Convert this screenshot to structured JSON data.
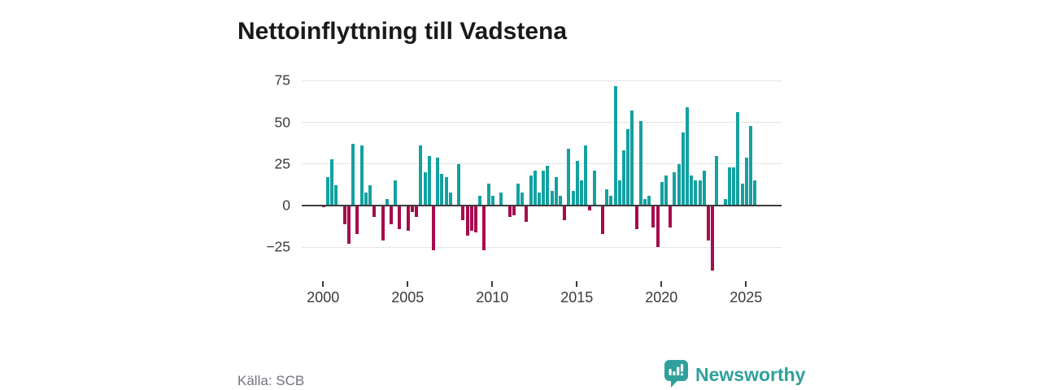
{
  "title": "Nettoinflyttning till Vadstena",
  "source": "Källa: SCB",
  "logo": {
    "text": "Newsworthy",
    "color": "#2fa09b"
  },
  "colors": {
    "positive_bar": "#14a1a0",
    "negative_bar": "#a60c4d",
    "gridline": "#e4e4e4",
    "zero_line": "#3d3d3d",
    "axis_text": "#3a3a40",
    "source_text": "#73737d",
    "title_text": "#191919"
  },
  "chart_data": {
    "type": "bar",
    "title": "Nettoinflyttning till Vadstena",
    "frequency": "quarterly",
    "x_start": "2000 Q1",
    "x_end": "2025 Q3",
    "grid": true,
    "legend": false,
    "ylim": [
      -45,
      80
    ],
    "yticks": [
      75,
      50,
      25,
      0,
      -25
    ],
    "ytick_labels": [
      "75",
      "50",
      "25",
      "0",
      "−25"
    ],
    "xticks": [
      2000,
      2005,
      2010,
      2015,
      2020,
      2025
    ],
    "xtick_labels": [
      "2000",
      "2005",
      "2010",
      "2015",
      "2020",
      "2025"
    ],
    "categories": [
      "2000Q1",
      "2000Q2",
      "2000Q3",
      "2000Q4",
      "2001Q1",
      "2001Q2",
      "2001Q3",
      "2001Q4",
      "2002Q1",
      "2002Q2",
      "2002Q3",
      "2002Q4",
      "2003Q1",
      "2003Q2",
      "2003Q3",
      "2003Q4",
      "2004Q1",
      "2004Q2",
      "2004Q3",
      "2004Q4",
      "2005Q1",
      "2005Q2",
      "2005Q3",
      "2005Q4",
      "2006Q1",
      "2006Q2",
      "2006Q3",
      "2006Q4",
      "2007Q1",
      "2007Q2",
      "2007Q3",
      "2007Q4",
      "2008Q1",
      "2008Q2",
      "2008Q3",
      "2008Q4",
      "2009Q1",
      "2009Q2",
      "2009Q3",
      "2009Q4",
      "2010Q1",
      "2010Q2",
      "2010Q3",
      "2010Q4",
      "2011Q1",
      "2011Q2",
      "2011Q3",
      "2011Q4",
      "2012Q1",
      "2012Q2",
      "2012Q3",
      "2012Q4",
      "2013Q1",
      "2013Q2",
      "2013Q3",
      "2013Q4",
      "2014Q1",
      "2014Q2",
      "2014Q3",
      "2014Q4",
      "2015Q1",
      "2015Q2",
      "2015Q3",
      "2015Q4",
      "2016Q1",
      "2016Q2",
      "2016Q3",
      "2016Q4",
      "2017Q1",
      "2017Q2",
      "2017Q3",
      "2017Q4",
      "2018Q1",
      "2018Q2",
      "2018Q3",
      "2018Q4",
      "2019Q1",
      "2019Q2",
      "2019Q3",
      "2019Q4",
      "2020Q1",
      "2020Q2",
      "2020Q3",
      "2020Q4",
      "2021Q1",
      "2021Q2",
      "2021Q3",
      "2021Q4",
      "2022Q1",
      "2022Q2",
      "2022Q3",
      "2022Q4",
      "2023Q1",
      "2023Q2",
      "2023Q3",
      "2023Q4",
      "2024Q1",
      "2024Q2",
      "2024Q3",
      "2024Q4",
      "2025Q1",
      "2025Q2",
      "2025Q3"
    ],
    "values": [
      -1,
      17,
      28,
      12,
      0,
      -11,
      -23,
      37,
      -17,
      36,
      8,
      12,
      -7,
      0,
      -21,
      4,
      -11,
      15,
      -14,
      0,
      -15,
      -4,
      -7,
      36,
      20,
      30,
      -27,
      29,
      19,
      17,
      8,
      0,
      25,
      -9,
      -18,
      -15,
      -16,
      6,
      -27,
      13,
      6,
      0,
      8,
      0,
      -7,
      -6,
      13,
      8,
      -10,
      18,
      21,
      8,
      21,
      24,
      9,
      17,
      6,
      -9,
      34,
      9,
      27,
      15,
      36,
      -3,
      21,
      0,
      -17,
      10,
      6,
      72,
      15,
      33,
      46,
      57,
      -14,
      51,
      4,
      6,
      -13,
      -25,
      14,
      18,
      -13,
      20,
      25,
      44,
      59,
      18,
      15,
      15,
      21,
      -21,
      -39,
      30,
      0,
      4,
      23,
      23,
      56,
      13,
      29,
      48,
      15
    ]
  }
}
